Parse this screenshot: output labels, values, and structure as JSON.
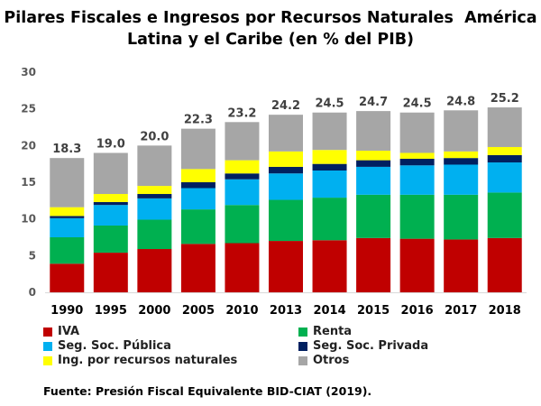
{
  "chart_data": {
    "type": "bar",
    "stacked": true,
    "title": "Pilares Fiscales e Ingresos por Recursos Naturales  América Latina y el Caribe (en % del PIB)",
    "title_lines": [
      "Pilares Fiscales e Ingresos por Recursos Naturales  América",
      "Latina y el Caribe (en % del PIB)"
    ],
    "categories": [
      "1990",
      "1995",
      "2000",
      "2005",
      "2010",
      "2013",
      "2014",
      "2015",
      "2016",
      "2017",
      "2018"
    ],
    "ylim": [
      0,
      30
    ],
    "yticks": [
      "0",
      "5",
      "10",
      "15",
      "20",
      "25",
      "30"
    ],
    "grid": false,
    "legend_position": "bottom",
    "series": [
      {
        "name": "IVA",
        "color": "#c00000",
        "values": [
          3.9,
          5.4,
          5.9,
          6.6,
          6.7,
          7.0,
          7.1,
          7.4,
          7.3,
          7.2,
          7.4
        ]
      },
      {
        "name": "Renta",
        "color": "#00b050",
        "values": [
          3.6,
          3.7,
          4.0,
          4.7,
          5.2,
          5.6,
          5.8,
          5.9,
          6.0,
          6.1,
          6.2
        ]
      },
      {
        "name": "Seg. Soc. Pública",
        "color": "#00b0f0",
        "values": [
          2.6,
          2.8,
          2.9,
          2.9,
          3.5,
          3.6,
          3.7,
          3.8,
          4.0,
          4.1,
          4.1
        ]
      },
      {
        "name": "Seg. Soc. Privada",
        "color": "#002060",
        "values": [
          0.3,
          0.4,
          0.6,
          0.8,
          0.8,
          0.9,
          0.9,
          0.9,
          0.9,
          0.9,
          1.0
        ]
      },
      {
        "name": "Ing. por recursos naturales",
        "color": "#ffff00",
        "values": [
          1.2,
          1.1,
          1.1,
          1.8,
          1.8,
          2.1,
          1.9,
          1.3,
          0.8,
          0.9,
          1.1
        ]
      },
      {
        "name": "Otros",
        "color": "#a6a6a6",
        "values": [
          6.7,
          5.6,
          5.5,
          5.5,
          5.2,
          5.0,
          5.1,
          5.4,
          5.5,
          5.6,
          5.4
        ]
      }
    ],
    "totals": [
      "18.3",
      "19.0",
      "20.0",
      "22.3",
      "23.2",
      "24.2",
      "24.5",
      "24.7",
      "24.5",
      "24.8",
      "25.2"
    ],
    "source": "Fuente: Presión Fiscal Equivalente BID-CIAT (2019)."
  }
}
